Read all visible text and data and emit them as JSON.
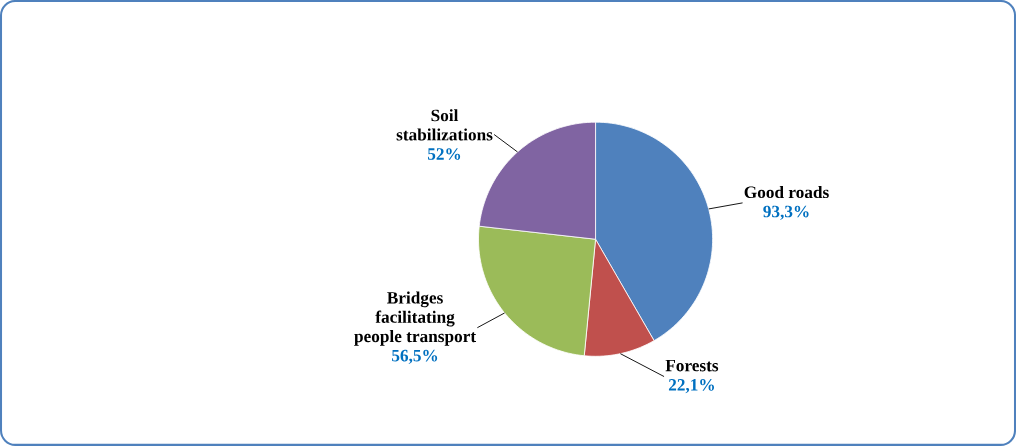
{
  "chart_data": {
    "type": "pie",
    "categories": [
      "Good roads",
      "Forests",
      "Bridges facilitating people transport",
      "Soil stabilizations"
    ],
    "values": [
      93.3,
      22.1,
      56.5,
      52
    ],
    "value_labels": [
      "93,3%",
      "22,1%",
      "56,5%",
      "52%"
    ],
    "colors": [
      "#4f81bd",
      "#c0504d",
      "#9bbb59",
      "#8064a2"
    ]
  }
}
